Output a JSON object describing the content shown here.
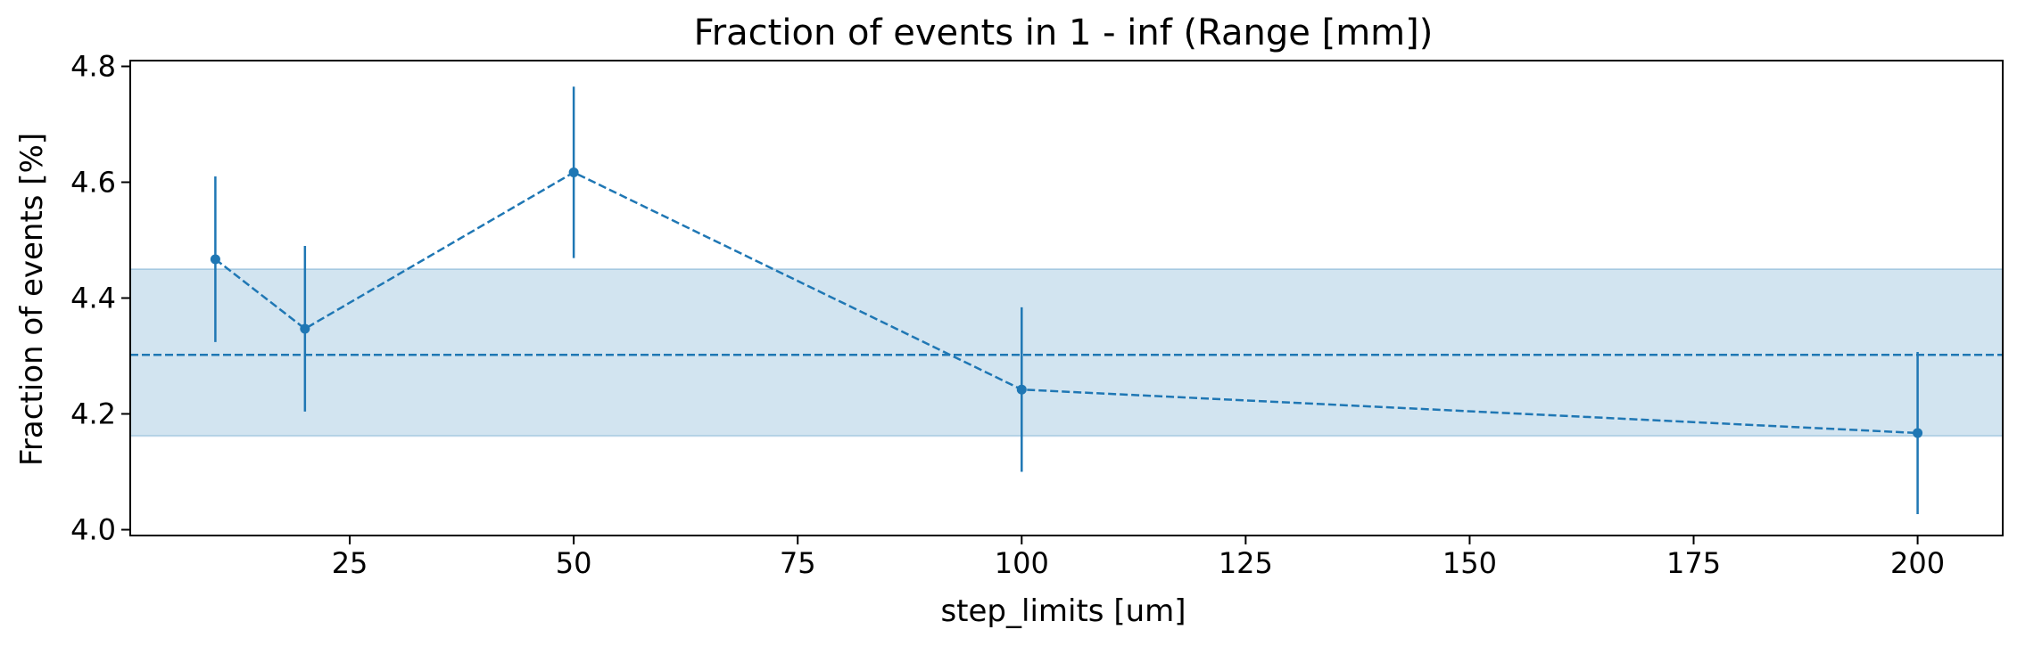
{
  "chart_data": {
    "type": "line",
    "title": "Fraction of events in 1 - inf (Range [mm])",
    "xlabel": "step_limits [um]",
    "ylabel": "Fraction of events [%]",
    "xlim": [
      0.5,
      209.5
    ],
    "ylim": [
      3.99,
      4.81
    ],
    "xticks": [
      25,
      50,
      75,
      100,
      125,
      150,
      175,
      200
    ],
    "yticks": [
      4.0,
      4.2,
      4.4,
      4.6,
      4.8
    ],
    "ytick_labels": [
      "4.0",
      "4.2",
      "4.4",
      "4.6",
      "4.8"
    ],
    "grid": false,
    "series": [
      {
        "x": [
          10,
          20,
          50,
          100,
          200
        ],
        "y": [
          4.467,
          4.347,
          4.617,
          4.242,
          4.167
        ],
        "yerr": [
          0.143,
          0.143,
          0.148,
          0.142,
          0.14
        ],
        "color": "#1f77b4",
        "linestyle": "dashed",
        "marker": "circle"
      }
    ],
    "reference": {
      "mean": 4.302,
      "band": [
        4.162,
        4.45
      ],
      "color": "#1f77b4"
    }
  }
}
